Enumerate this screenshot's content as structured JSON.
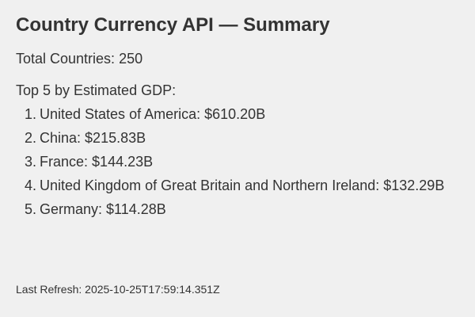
{
  "header": {
    "title": "Country Currency API — Summary"
  },
  "summary": {
    "total_label": "Total Countries:",
    "total_value": "250",
    "top_heading": "Top 5 by Estimated GDP:",
    "top_countries": [
      {
        "rank": "1.",
        "name": "United States of America",
        "gdp": "$610.20B"
      },
      {
        "rank": "2.",
        "name": "China",
        "gdp": "$215.83B"
      },
      {
        "rank": "3.",
        "name": "France",
        "gdp": "$144.23B"
      },
      {
        "rank": "4.",
        "name": "United Kingdom of Great Britain and Northern Ireland",
        "gdp": "$132.29B"
      },
      {
        "rank": "5.",
        "name": "Germany",
        "gdp": "$114.28B"
      }
    ]
  },
  "footer": {
    "refresh_label": "Last Refresh:",
    "refresh_value": "2025-10-25T17:59:14.351Z"
  }
}
